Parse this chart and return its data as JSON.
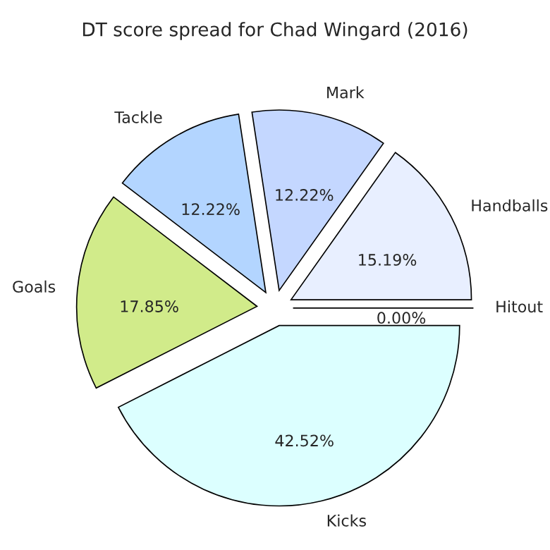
{
  "chart_data": {
    "type": "pie",
    "title": "DT score spread for Chad Wingard (2016)",
    "categories": [
      "Hitout",
      "Handballs",
      "Mark",
      "Tackle",
      "Goals",
      "Kicks"
    ],
    "values": [
      0.0,
      15.19,
      12.22,
      12.22,
      17.85,
      42.52
    ],
    "value_labels": [
      "0.00%",
      "15.19%",
      "12.22%",
      "12.22%",
      "17.85%",
      "42.52%"
    ],
    "colors": [
      "#e0ffff",
      "#e8efff",
      "#c4d7ff",
      "#b3d5ff",
      "#d1eb8a",
      "#dcffff"
    ],
    "legend": false
  }
}
